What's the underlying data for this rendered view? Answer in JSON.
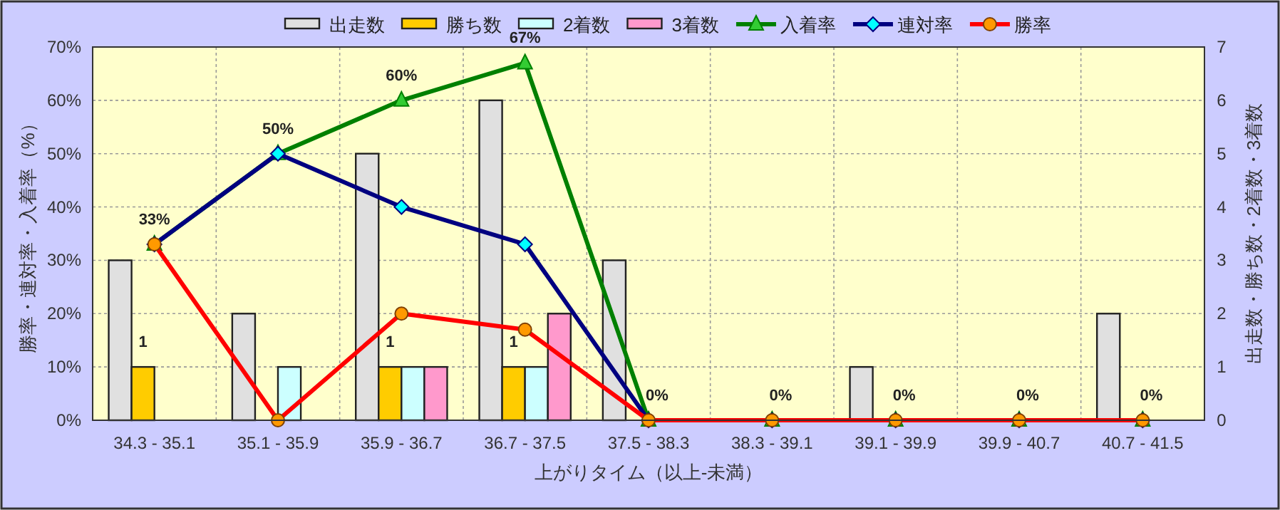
{
  "chart_data": {
    "type": "bar",
    "xlabel": "上がりタイム（以上-未満）",
    "ylabel": "勝率・連対率・入着率（%）",
    "y2label": "出走数・勝ち数・2着数・3着数",
    "categories": [
      "34.3 - 35.1",
      "35.1 - 35.9",
      "35.9 - 36.7",
      "36.7 - 37.5",
      "37.5 - 38.3",
      "38.3 - 39.1",
      "39.1 - 39.9",
      "39.9 - 40.7",
      "40.7 - 41.5"
    ],
    "series": [
      {
        "name": "出走数",
        "axis": "y2",
        "color": "#e0e0e0",
        "values": [
          3,
          2,
          5,
          6,
          3,
          0,
          1,
          0,
          2
        ]
      },
      {
        "name": "勝ち数",
        "axis": "y2",
        "color": "#ffcc00",
        "values": [
          1,
          0,
          1,
          1,
          0,
          0,
          0,
          0,
          0
        ],
        "value_labels": [
          "1",
          null,
          "1",
          "1",
          null,
          null,
          null,
          null,
          null
        ]
      },
      {
        "name": "2着数",
        "axis": "y2",
        "color": "#ccffff",
        "values": [
          0,
          1,
          1,
          1,
          0,
          0,
          0,
          0,
          0
        ]
      },
      {
        "name": "3着数",
        "axis": "y2",
        "color": "#ff99cc",
        "values": [
          0,
          0,
          1,
          2,
          0,
          0,
          0,
          0,
          0
        ]
      },
      {
        "name": "入着率",
        "type": "line",
        "axis": "y",
        "color": "#008000",
        "marker": "triangle",
        "values": [
          33,
          50,
          60,
          67,
          0,
          0,
          0,
          0,
          0
        ],
        "value_labels": [
          "33%",
          "50%",
          "60%",
          "67%",
          "0%",
          "0%",
          "0%",
          "0%",
          "0%"
        ]
      },
      {
        "name": "連対率",
        "type": "line",
        "axis": "y",
        "color": "#000080",
        "marker": "diamond",
        "values": [
          33,
          50,
          40,
          33,
          0,
          0,
          0,
          0,
          0
        ]
      },
      {
        "name": "勝率",
        "type": "line",
        "axis": "y",
        "color": "#ff0000",
        "marker": "circle",
        "values": [
          33,
          0,
          20,
          17,
          0,
          0,
          0,
          0,
          0
        ]
      }
    ],
    "ylim": [
      0,
      70
    ],
    "yticks": [
      {
        "value": 0,
        "label": "0%"
      },
      {
        "value": 10,
        "label": "10%"
      },
      {
        "value": 20,
        "label": "20%"
      },
      {
        "value": 30,
        "label": "30%"
      },
      {
        "value": 40,
        "label": "40%"
      },
      {
        "value": 50,
        "label": "50%"
      },
      {
        "value": 60,
        "label": "60%"
      },
      {
        "value": 70,
        "label": "70%"
      }
    ],
    "y2lim": [
      0,
      7
    ],
    "y2ticks": [
      0,
      1,
      2,
      3,
      4,
      5,
      6,
      7
    ],
    "grid": true,
    "legend": "top"
  }
}
